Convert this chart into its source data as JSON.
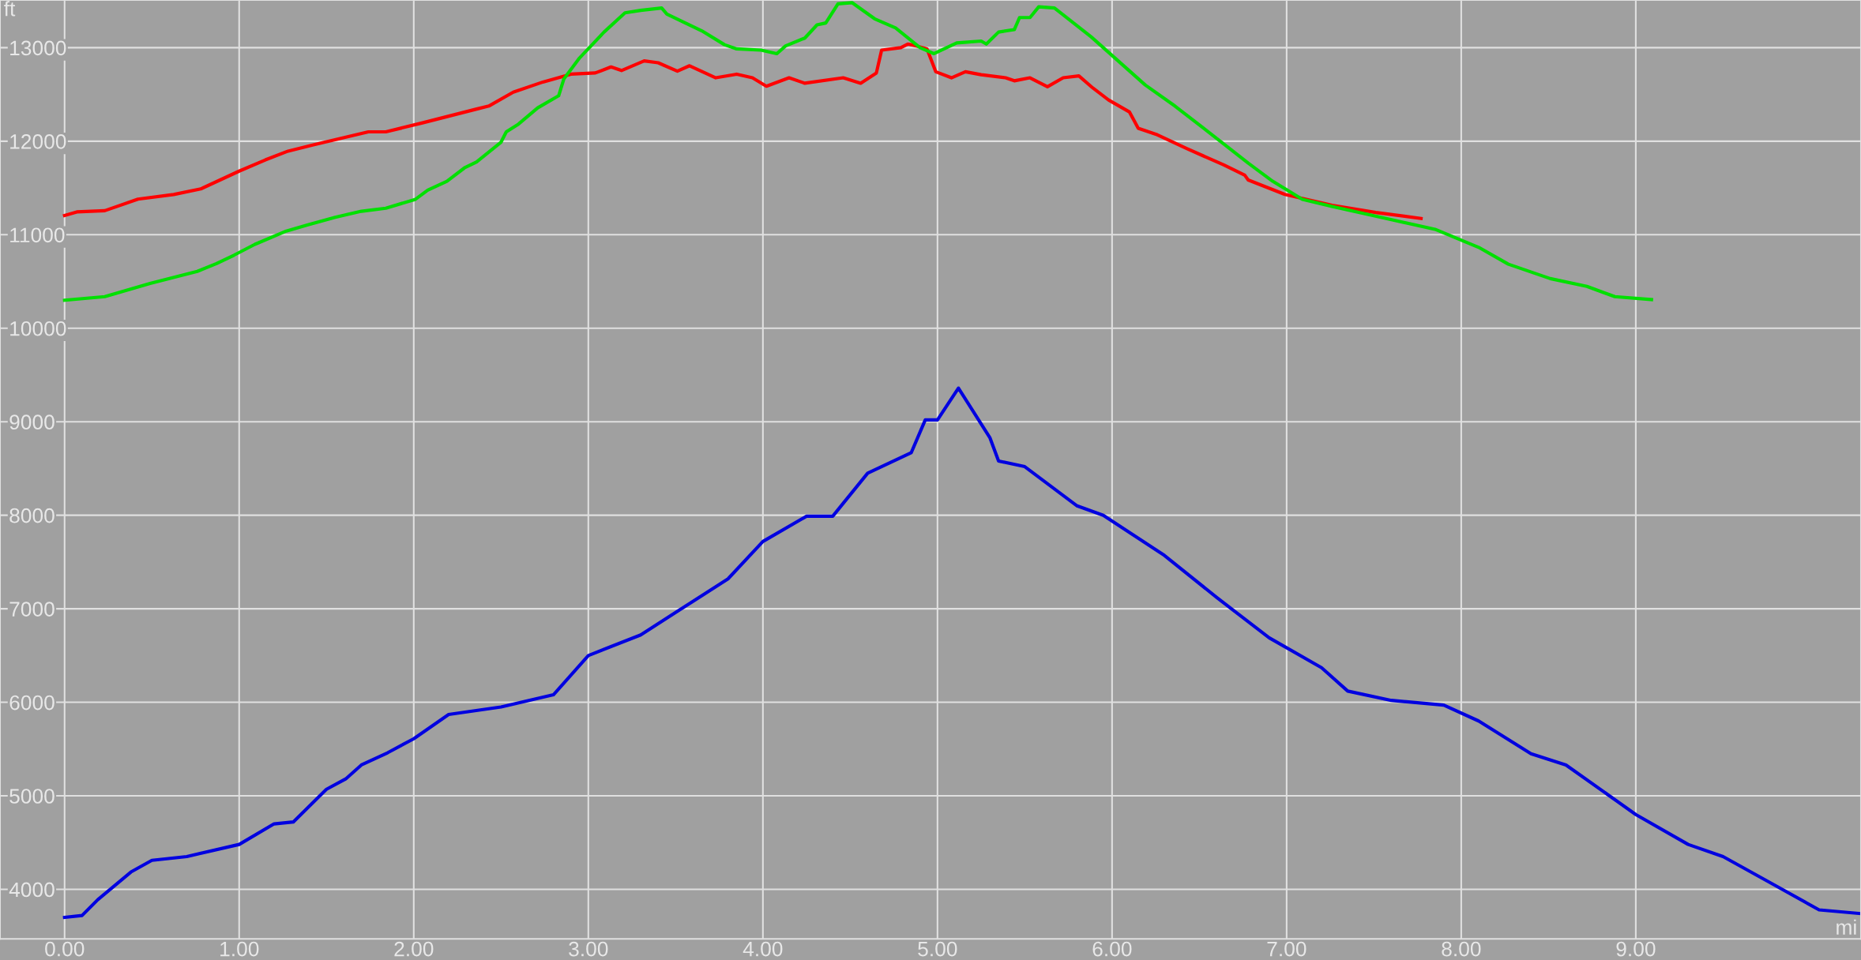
{
  "chart_data": {
    "type": "line",
    "xlabel": "mi",
    "ylabel": "ft",
    "xlim": [
      -0.37,
      10.29
    ],
    "ylim": [
      3470,
      13510
    ],
    "xticks": [
      {
        "value": 0,
        "label": "0.00"
      },
      {
        "value": 1,
        "label": "1.00"
      },
      {
        "value": 2,
        "label": "2.00"
      },
      {
        "value": 3,
        "label": "3.00"
      },
      {
        "value": 4,
        "label": "4.00"
      },
      {
        "value": 5,
        "label": "5.00"
      },
      {
        "value": 6,
        "label": "6.00"
      },
      {
        "value": 7,
        "label": "7.00"
      },
      {
        "value": 8,
        "label": "8.00"
      },
      {
        "value": 9,
        "label": "9.00"
      }
    ],
    "yticks": [
      4000,
      5000,
      6000,
      7000,
      8000,
      9000,
      10000,
      11000,
      12000,
      13000
    ],
    "grid": true,
    "marker": "none",
    "line_style": "solid",
    "series": [
      {
        "color": "#ff0000",
        "x": [
          0,
          0.07,
          0.23,
          0.42,
          0.625,
          0.78,
          1.0,
          1.15,
          1.28,
          1.42,
          1.74,
          1.84,
          2.05,
          2.36,
          2.43,
          2.57,
          2.74,
          2.9,
          3.04,
          3.13,
          3.19,
          3.32,
          3.4,
          3.51,
          3.58,
          3.73,
          3.85,
          3.94,
          4.02,
          4.15,
          4.24,
          4.46,
          4.56,
          4.65,
          4.68,
          4.79,
          4.83,
          4.88,
          4.94,
          4.99,
          5.08,
          5.16,
          5.25,
          5.39,
          5.44,
          5.53,
          5.63,
          5.72,
          5.81,
          5.89,
          5.98,
          6.1,
          6.15,
          6.26,
          6.43,
          6.64,
          6.76,
          6.78,
          6.99,
          7.26,
          7.51,
          7.77
        ],
        "values": [
          11206,
          11244,
          11257,
          11380,
          11430,
          11490,
          11680,
          11800,
          11894,
          11958,
          12100,
          12100,
          12196,
          12344,
          12376,
          12524,
          12633,
          12717,
          12730,
          12794,
          12756,
          12859,
          12839,
          12749,
          12807,
          12678,
          12717,
          12678,
          12588,
          12678,
          12620,
          12678,
          12620,
          12730,
          12974,
          13000,
          13039,
          13019,
          12987,
          12743,
          12678,
          12743,
          12711,
          12678,
          12646,
          12678,
          12582,
          12678,
          12698,
          12569,
          12441,
          12312,
          12138,
          12068,
          11920,
          11746,
          11637,
          11585,
          11431,
          11315,
          11238,
          11174
        ]
      },
      {
        "color": "#00e000",
        "x": [
          0,
          0.23,
          0.49,
          0.76,
          0.87,
          0.97,
          1.09,
          1.27,
          1.39,
          1.55,
          1.7,
          1.84,
          2.01,
          2.08,
          2.19,
          2.29,
          2.36,
          2.5,
          2.53,
          2.6,
          2.71,
          2.83,
          2.86,
          2.95,
          3.09,
          3.21,
          3.3,
          3.42,
          3.45,
          3.65,
          3.78,
          3.85,
          3.99,
          4.08,
          4.13,
          4.24,
          4.31,
          4.36,
          4.43,
          4.51,
          4.64,
          4.76,
          4.9,
          4.98,
          5.11,
          5.25,
          5.28,
          5.35,
          5.44,
          5.47,
          5.53,
          5.58,
          5.67,
          5.88,
          6.19,
          6.36,
          6.64,
          6.78,
          6.92,
          7.09,
          7.26,
          7.54,
          7.85,
          8.1,
          8.27,
          8.51,
          8.72,
          8.88,
          9.09
        ],
        "values": [
          10299,
          10338,
          10479,
          10608,
          10691,
          10781,
          10897,
          11039,
          11103,
          11186,
          11251,
          11283,
          11379,
          11476,
          11572,
          11714,
          11778,
          11990,
          12100,
          12183,
          12357,
          12486,
          12666,
          12891,
          13167,
          13373,
          13399,
          13424,
          13360,
          13180,
          13032,
          12987,
          12974,
          12936,
          13019,
          13103,
          13244,
          13264,
          13469,
          13482,
          13309,
          13212,
          13000,
          12936,
          13051,
          13071,
          13039,
          13167,
          13193,
          13322,
          13322,
          13437,
          13424,
          13116,
          12601,
          12376,
          11971,
          11765,
          11572,
          11379,
          11302,
          11186,
          11058,
          10865,
          10685,
          10531,
          10447,
          10338,
          10306
        ]
      },
      {
        "color": "#0000e0",
        "x": [
          0,
          0.1,
          0.19,
          0.38,
          0.5,
          0.7,
          1.0,
          1.2,
          1.31,
          1.5,
          1.61,
          1.7,
          1.85,
          2.0,
          2.2,
          2.5,
          2.8,
          3.0,
          3.3,
          3.5,
          3.8,
          4.0,
          4.25,
          4.4,
          4.6,
          4.85,
          4.93,
          5.0,
          5.12,
          5.3,
          5.35,
          5.5,
          5.8,
          5.95,
          6.3,
          6.6,
          6.9,
          7.2,
          7.35,
          7.6,
          7.9,
          8.1,
          8.4,
          8.6,
          9.0,
          9.3,
          9.5,
          9.8,
          10.05,
          10.29
        ],
        "values": [
          3700,
          3720,
          3889,
          4185,
          4310,
          4350,
          4480,
          4700,
          4720,
          5070,
          5180,
          5330,
          5460,
          5610,
          5870,
          5950,
          6080,
          6500,
          6720,
          6960,
          7320,
          7720,
          7990,
          7990,
          8450,
          8670,
          9020,
          9020,
          9360,
          8830,
          8580,
          8520,
          8100,
          8000,
          7570,
          7120,
          6690,
          6370,
          6120,
          6020,
          5970,
          5800,
          5450,
          5330,
          4800,
          4480,
          4350,
          4040,
          3780,
          3740
        ]
      }
    ]
  }
}
